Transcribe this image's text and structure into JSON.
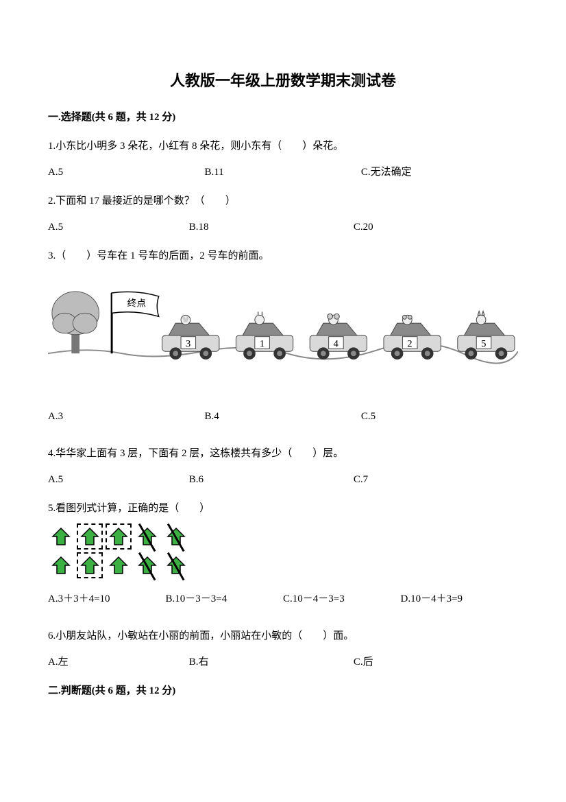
{
  "title": "人教版一年级上册数学期末测试卷",
  "section1": {
    "header": "一.选择题(共 6 题，共 12 分)",
    "q1": {
      "text": "1.小东比小明多 3 朵花，小红有 8 朵花，则小东有（　　）朵花。",
      "optA": "A.5",
      "optB": "B.11",
      "optC": "C.无法确定"
    },
    "q2": {
      "text": "2.下面和 17 最接近的是哪个数？（　　）",
      "optA": "A.5",
      "optB": "B.18",
      "optC": "C.20"
    },
    "q3": {
      "text": "3.（　　）号车在 1 号车的后面，2 号车的前面。",
      "optA": "A.3",
      "optB": "B.4",
      "optC": "C.5",
      "flag_label": "终点",
      "cars": [
        "3",
        "1",
        "4",
        "2",
        "5"
      ]
    },
    "q4": {
      "text": "4.华华家上面有 3 层，下面有 2 层，这栋楼共有多少（　　）层。",
      "optA": "A.5",
      "optB": "B.6",
      "optC": "C.7"
    },
    "q5": {
      "text": "5.看图列式计算，正确的是（　　）",
      "optA": "A.3＋3＋4=10",
      "optB": "B.10－3－3=4",
      "optC": "C.10－4－3=3",
      "optD": "D.10－4＋3=9",
      "arrows": {
        "fill_color": "#3cb043",
        "stroke_color": "#000000",
        "row1": [
          {
            "crossed": false,
            "dashed": false
          },
          {
            "crossed": false,
            "dashed": true
          },
          {
            "crossed": false,
            "dashed": true
          },
          {
            "crossed": true,
            "dashed": false
          },
          {
            "crossed": true,
            "dashed": false
          }
        ],
        "row2": [
          {
            "crossed": false,
            "dashed": false
          },
          {
            "crossed": false,
            "dashed": true
          },
          {
            "crossed": false,
            "dashed": false
          },
          {
            "crossed": true,
            "dashed": false
          },
          {
            "crossed": true,
            "dashed": false
          }
        ]
      }
    },
    "q6": {
      "text": "6.小朋友站队，小敏站在小丽的前面，小丽站在小敏的（　　）面。",
      "optA": "A.左",
      "optB": "B.右",
      "optC": "C.后"
    }
  },
  "section2": {
    "header": "二.判断题(共 6 题，共 12 分)"
  },
  "colors": {
    "text": "#000000",
    "background": "#ffffff",
    "car_body": "#d9d9d9",
    "car_dark": "#8a8a8a",
    "tree_canopy": "#bcbcbc",
    "tree_trunk": "#777777",
    "flag_bg": "#ffffff",
    "ground": "#888888"
  }
}
